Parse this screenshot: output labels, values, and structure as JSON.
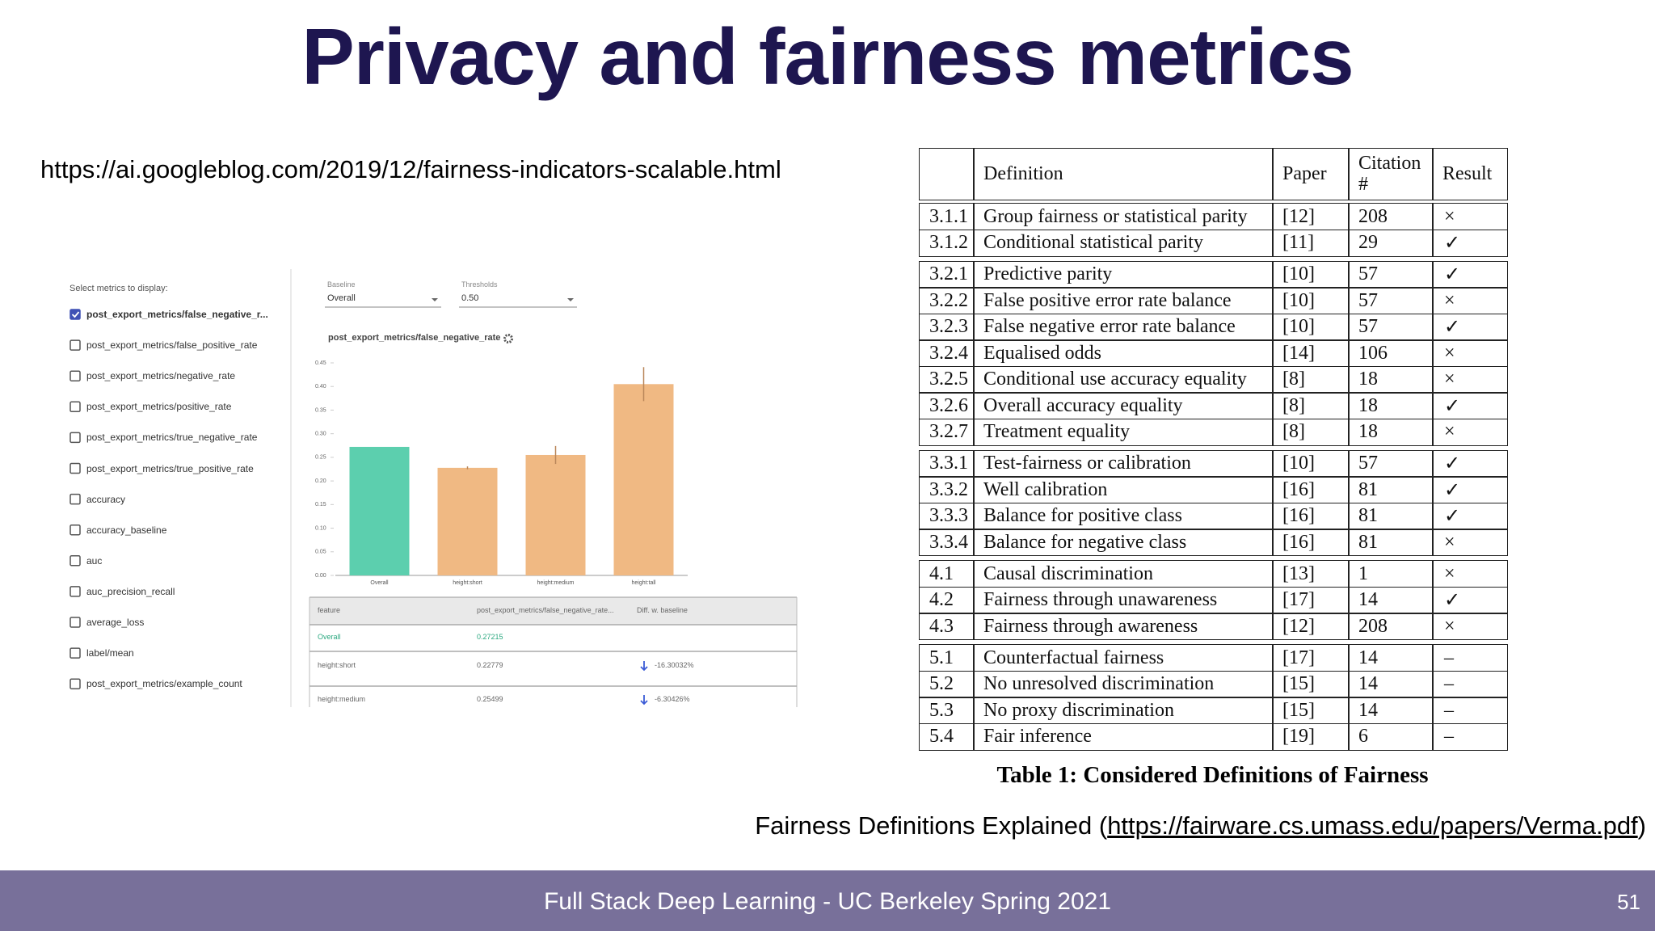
{
  "header": {
    "title": "Privacy and fairness metrics"
  },
  "link": "https://ai.googleblog.com/2019/12/fairness-indicators-scalable.html",
  "screenshot": {
    "metrics_heading": "Select metrics to display:",
    "metrics": [
      {
        "label": "post_export_metrics/false_negative_r...",
        "checked": true
      },
      {
        "label": "post_export_metrics/false_positive_rate",
        "checked": false
      },
      {
        "label": "post_export_metrics/negative_rate",
        "checked": false
      },
      {
        "label": "post_export_metrics/positive_rate",
        "checked": false
      },
      {
        "label": "post_export_metrics/true_negative_rate",
        "checked": false
      },
      {
        "label": "post_export_metrics/true_positive_rate",
        "checked": false
      },
      {
        "label": "accuracy",
        "checked": false
      },
      {
        "label": "accuracy_baseline",
        "checked": false
      },
      {
        "label": "auc",
        "checked": false
      },
      {
        "label": "auc_precision_recall",
        "checked": false
      },
      {
        "label": "average_loss",
        "checked": false
      },
      {
        "label": "label/mean",
        "checked": false
      },
      {
        "label": "post_export_metrics/example_count",
        "checked": false
      }
    ],
    "baseline_label": "Baseline",
    "baseline_value": "Overall",
    "thresholds_label": "Thresholds",
    "thresholds_value": "0.50",
    "table": {
      "header": [
        "feature",
        "post_export_metrics/false_negative_rate...",
        "Diff. w. baseline"
      ],
      "rows": [
        [
          "Overall",
          "0.27215"
        ],
        [
          "height:short",
          "0.22779",
          "-16.30032%"
        ],
        [
          "height:medium",
          "0.25499",
          "-6.30426%"
        ]
      ]
    }
  },
  "chart_data": {
    "type": "bar",
    "title": "post_export_metrics/false_negative_rate",
    "categories": [
      "Overall",
      "height:short",
      "height:medium",
      "height:tall"
    ],
    "values": [
      0.27215,
      0.22779,
      0.25499,
      0.405
    ],
    "errors": [
      0,
      0.003,
      0.019,
      0.036
    ],
    "colors": [
      "#5ccfae",
      "#f0b983",
      "#f0b983",
      "#f0b983"
    ],
    "ylim": [
      0,
      0.45
    ],
    "yticks": [
      {
        "value": 0,
        "label": "0.00"
      },
      {
        "value": 0.05,
        "label": "0.05"
      },
      {
        "value": 0.1,
        "label": "0.10"
      },
      {
        "value": 0.15,
        "label": "0.15"
      },
      {
        "value": 0.2,
        "label": "0.20"
      },
      {
        "value": 0.25,
        "label": "0.25"
      },
      {
        "value": 0.3,
        "label": "0.30"
      },
      {
        "value": 0.35,
        "label": "0.35"
      },
      {
        "value": 0.4,
        "label": "0.40"
      },
      {
        "value": 0.45,
        "label": "0.45"
      }
    ],
    "grid": false
  },
  "table": {
    "header": [
      "Definition",
      "Paper",
      "Citation #",
      "Result"
    ],
    "groups": [
      [
        [
          "3.1.1",
          "Group fairness or statistical parity",
          "[12]",
          208,
          "×"
        ],
        [
          "3.1.2",
          "Conditional statistical parity",
          "[11]",
          29,
          "✓"
        ]
      ],
      [
        [
          "3.2.1",
          "Predictive parity",
          "[10]",
          57,
          "✓"
        ],
        [
          "3.2.2",
          "False positive error rate balance",
          "[10]",
          57,
          "×"
        ],
        [
          "3.2.3",
          "False negative error rate balance",
          "[10]",
          57,
          "✓"
        ],
        [
          "3.2.4",
          "Equalised odds",
          "[14]",
          106,
          "×"
        ],
        [
          "3.2.5",
          "Conditional use accuracy equality",
          "[8]",
          18,
          "×"
        ],
        [
          "3.2.6",
          "Overall accuracy equality",
          "[8]",
          18,
          "✓"
        ],
        [
          "3.2.7",
          "Treatment equality",
          "[8]",
          18,
          "×"
        ]
      ],
      [
        [
          "3.3.1",
          "Test-fairness or calibration",
          "[10]",
          57,
          "✓"
        ],
        [
          "3.3.2",
          "Well calibration",
          "[16]",
          81,
          "✓"
        ],
        [
          "3.3.3",
          "Balance for positive class",
          "[16]",
          81,
          "✓"
        ],
        [
          "3.3.4",
          "Balance for negative class",
          "[16]",
          81,
          "×"
        ]
      ],
      [
        [
          "4.1",
          "Causal discrimination",
          "[13]",
          1,
          "×"
        ],
        [
          "4.2",
          "Fairness through unawareness",
          "[17]",
          14,
          "✓"
        ],
        [
          "4.3",
          "Fairness through awareness",
          "[12]",
          208,
          "×"
        ]
      ],
      [
        [
          "5.1",
          "Counterfactual fairness",
          "[17]",
          14,
          "–"
        ],
        [
          "5.2",
          "No unresolved discrimination",
          "[15]",
          14,
          "–"
        ],
        [
          "5.3",
          "No proxy discrimination",
          "[15]",
          14,
          "–"
        ],
        [
          "5.4",
          "Fair inference",
          "[19]",
          6,
          "–"
        ]
      ]
    ],
    "caption": "Table 1: Considered Definitions of Fairness"
  },
  "reference": {
    "prefix": "Fairness Definitions Explained (",
    "link": "https://fairware.cs.umass.edu/papers/Verma.pdf",
    "suffix": ")"
  },
  "footer": {
    "text": "Full Stack Deep Learning - UC Berkeley Spring 2021",
    "page": 51
  }
}
